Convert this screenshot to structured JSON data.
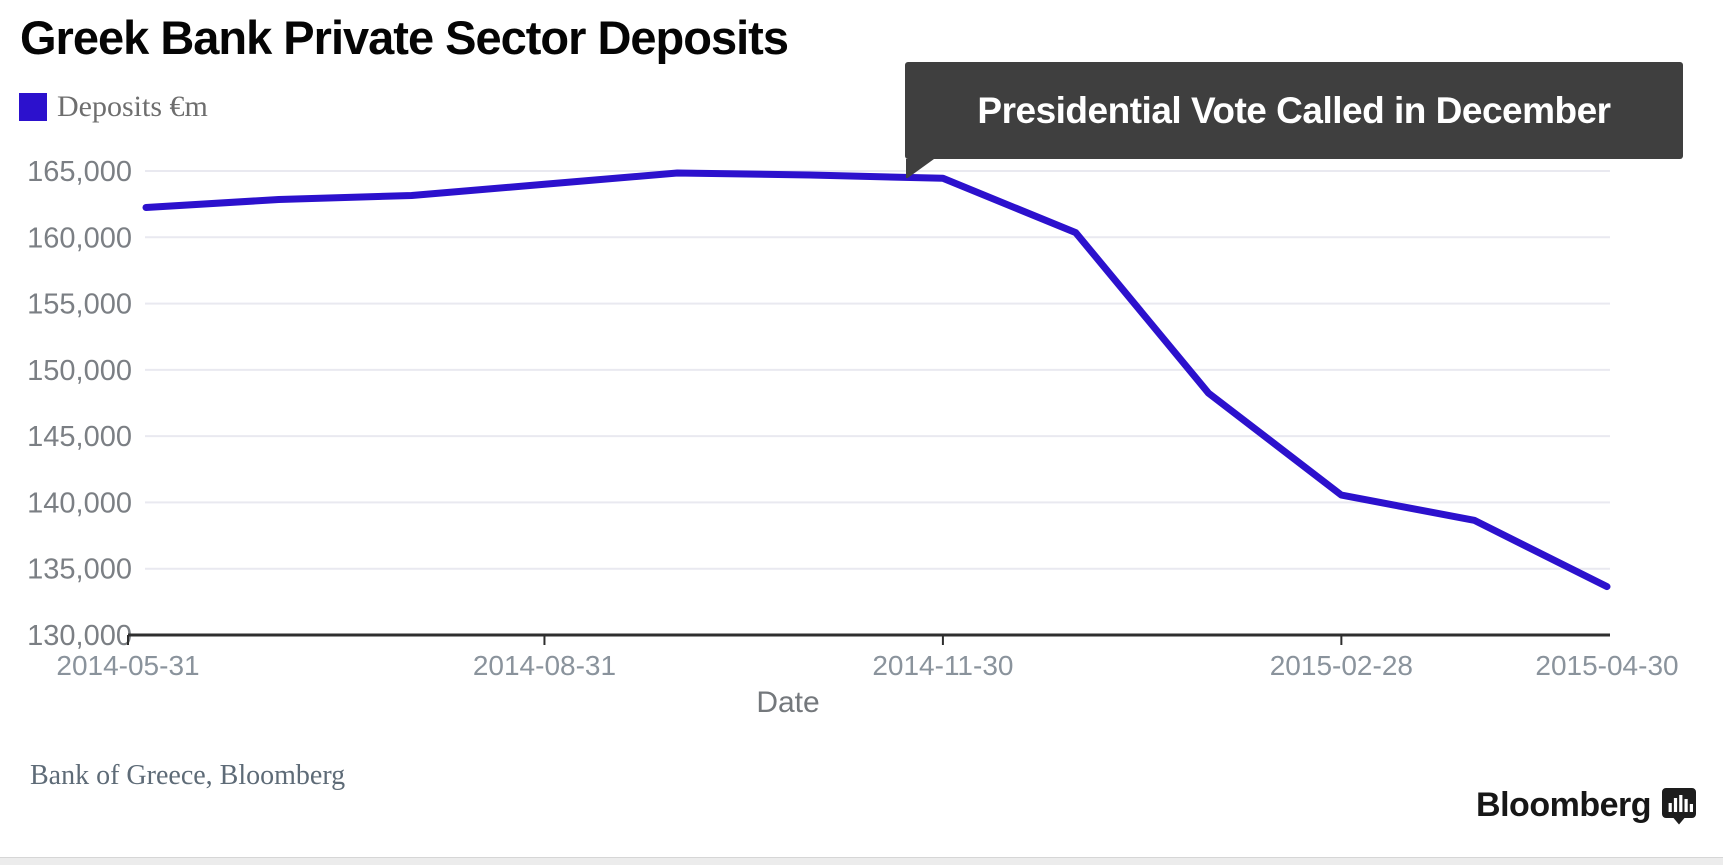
{
  "header": {
    "title": "Greek Bank Private Sector Deposits"
  },
  "legend": {
    "label": "Deposits €m",
    "swatch_color": "#2c11cd"
  },
  "annotation": {
    "text": "Presidential Vote Called in December",
    "bg_color": "#3f3f3f",
    "text_color": "#ffffff",
    "points_at": "2014-11-30"
  },
  "chart_data": {
    "type": "line",
    "title": "Greek Bank Private Sector Deposits",
    "xlabel": "Date",
    "ylabel": "",
    "x": [
      "2014-05-31",
      "2014-06-30",
      "2014-07-31",
      "2014-08-31",
      "2014-09-30",
      "2014-10-31",
      "2014-11-30",
      "2014-12-31",
      "2015-01-31",
      "2015-02-28",
      "2015-03-31",
      "2015-04-30"
    ],
    "series": [
      {
        "name": "Deposits €m",
        "color": "#2c11cd",
        "values": [
          162250,
          162850,
          163150,
          164000,
          164850,
          164700,
          164450,
          160350,
          148250,
          140550,
          138650,
          133650
        ]
      }
    ],
    "ylim": [
      130000,
      165000
    ],
    "yticks": [
      130000,
      135000,
      140000,
      145000,
      150000,
      155000,
      160000,
      165000
    ],
    "ytick_labels": [
      "130,000",
      "135,000",
      "140,000",
      "145,000",
      "150,000",
      "155,000",
      "160,000",
      "165,000"
    ],
    "xtick_indices": [
      0,
      3,
      6,
      9,
      11
    ],
    "xtick_labels": [
      "2014-05-31",
      "2014-08-31",
      "2014-11-30",
      "2015-02-28",
      "2015-04-30"
    ],
    "grid": "horizontal",
    "legend_position": "top-left"
  },
  "source": {
    "text": "Bank of Greece, Bloomberg"
  },
  "branding": {
    "wordmark": "Bloomberg",
    "icon": "bloomberg-chart-bubble-icon"
  }
}
